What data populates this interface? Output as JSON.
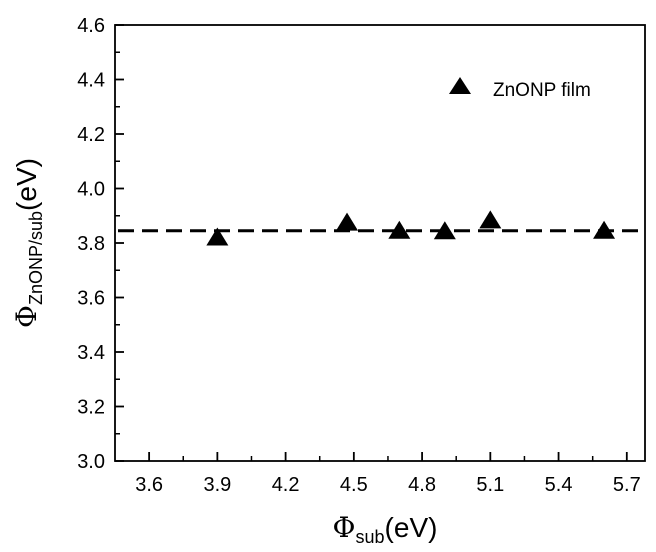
{
  "chart_data": {
    "type": "scatter",
    "series": [
      {
        "name": "ZnONP film",
        "marker": "triangle",
        "color": "#000000",
        "x": [
          3.9,
          4.47,
          4.7,
          4.9,
          5.1,
          5.6
        ],
        "y": [
          3.82,
          3.875,
          3.845,
          3.843,
          3.883,
          3.845
        ]
      }
    ],
    "reference_line": {
      "y": 3.845,
      "style": "dashed",
      "color": "#000000"
    },
    "xaxis": {
      "label_symbol": "Φ",
      "label_subscript": "sub",
      "label_unit": "(eV)",
      "ticks": [
        "3.6",
        "3.9",
        "4.2",
        "4.5",
        "4.8",
        "5.1",
        "5.4",
        "5.7"
      ],
      "range": [
        3.45,
        5.78
      ]
    },
    "yaxis": {
      "label_symbol": "Φ",
      "label_subscript": "ZnONP/sub",
      "label_unit": "(eV)",
      "ticks": [
        "3.0",
        "3.2",
        "3.4",
        "3.6",
        "3.8",
        "4.0",
        "4.2",
        "4.4",
        "4.6"
      ],
      "range": [
        3.0,
        4.6
      ]
    },
    "legend": {
      "position": "top-right",
      "label": "ZnONP film"
    },
    "grid": false
  }
}
